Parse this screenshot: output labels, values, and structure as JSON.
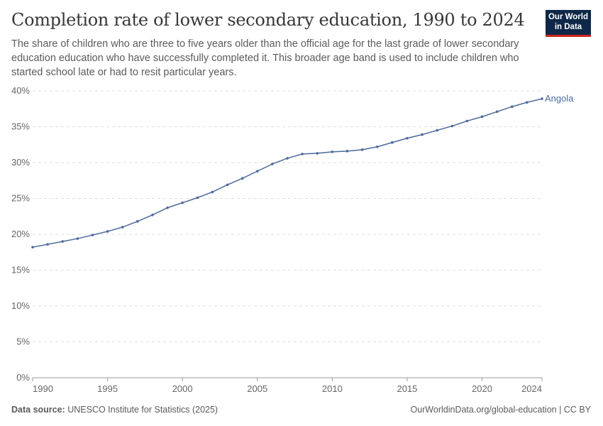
{
  "header": {
    "title": "Completion rate of lower secondary education, 1990 to 2024",
    "subtitle": "The share of children who are three to five years older than the official age for the last grade of lower secondary education education who have successfully completed it. This broader age band is used to include children who started school late or had to resit particular years.",
    "logo": "Our World in Data"
  },
  "footer": {
    "source_label": "Data source:",
    "source": "UNESCO Institute for Statistics (2025)",
    "link": "OurWorldinData.org/global-education | CC BY"
  },
  "chart_data": {
    "type": "line",
    "title": "Completion rate of lower secondary education, 1990 to 2024",
    "xlim": [
      1990,
      2024
    ],
    "ylim": [
      0,
      40
    ],
    "grid": "horizontal dashed",
    "x_ticks": [
      "1990",
      "1995",
      "2000",
      "2005",
      "2010",
      "2015",
      "2020",
      "2024"
    ],
    "y_ticks": [
      "0%",
      "5%",
      "10%",
      "15%",
      "20%",
      "25%",
      "30%",
      "35%",
      "40%"
    ],
    "series": [
      {
        "name": "Angola",
        "color": "#4c6a9c",
        "x": [
          1990,
          1991,
          1992,
          1993,
          1994,
          1995,
          1996,
          1997,
          1998,
          1999,
          2000,
          2001,
          2002,
          2003,
          2004,
          2005,
          2006,
          2007,
          2008,
          2009,
          2010,
          2011,
          2012,
          2013,
          2014,
          2015,
          2016,
          2017,
          2018,
          2019,
          2020,
          2021,
          2022,
          2023,
          2024
        ],
        "values": [
          18.2,
          18.6,
          19.0,
          19.4,
          19.9,
          20.4,
          21.0,
          21.8,
          22.7,
          23.7,
          24.4,
          25.1,
          25.9,
          26.9,
          27.8,
          28.8,
          29.8,
          30.6,
          31.2,
          31.3,
          31.5,
          31.6,
          31.8,
          32.2,
          32.8,
          33.4,
          33.9,
          34.5,
          35.1,
          35.8,
          36.4,
          37.1,
          37.8,
          38.4,
          38.9
        ]
      }
    ]
  }
}
